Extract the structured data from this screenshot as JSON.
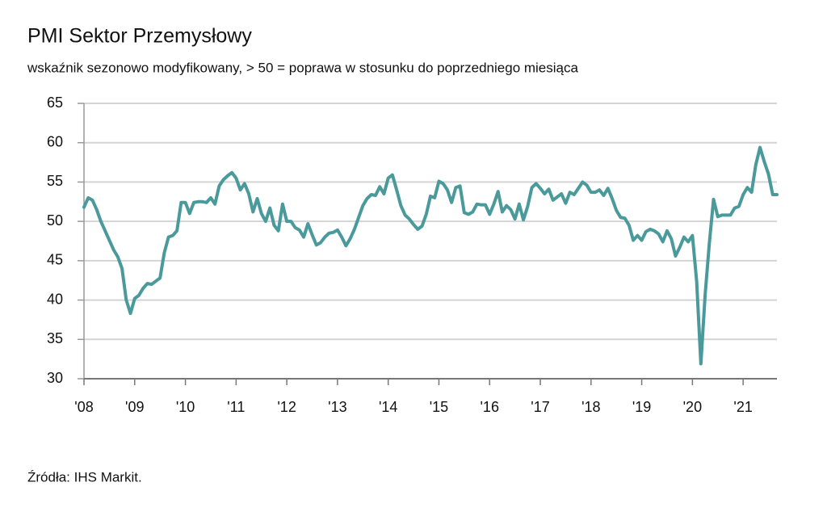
{
  "chart_data": {
    "type": "line",
    "title": "PMI Sektor Przemysłowy",
    "subtitle": "wskaźnik sezonowo modyfikowany, > 50 = poprawa w stosunku do poprzedniego miesiąca",
    "source": "Źródła: IHS Markit.",
    "categories": [
      "'08",
      null,
      null,
      null,
      null,
      null,
      null,
      null,
      null,
      null,
      null,
      null,
      "'09",
      null,
      null,
      null,
      null,
      null,
      null,
      null,
      null,
      null,
      null,
      null,
      "'10",
      null,
      null,
      null,
      null,
      null,
      null,
      null,
      null,
      null,
      null,
      null,
      "'11",
      null,
      null,
      null,
      null,
      null,
      null,
      null,
      null,
      null,
      null,
      null,
      "'12",
      null,
      null,
      null,
      null,
      null,
      null,
      null,
      null,
      null,
      null,
      null,
      "'13",
      null,
      null,
      null,
      null,
      null,
      null,
      null,
      null,
      null,
      null,
      null,
      "'14",
      null,
      null,
      null,
      null,
      null,
      null,
      null,
      null,
      null,
      null,
      null,
      "'15",
      null,
      null,
      null,
      null,
      null,
      null,
      null,
      null,
      null,
      null,
      null,
      "'16",
      null,
      null,
      null,
      null,
      null,
      null,
      null,
      null,
      null,
      null,
      null,
      "'17",
      null,
      null,
      null,
      null,
      null,
      null,
      null,
      null,
      null,
      null,
      null,
      "'18",
      null,
      null,
      null,
      null,
      null,
      null,
      null,
      null,
      null,
      null,
      null,
      "'19",
      null,
      null,
      null,
      null,
      null,
      null,
      null,
      null,
      null,
      null,
      null,
      "'20",
      null,
      null,
      null,
      null,
      null,
      null,
      null,
      null,
      null,
      null,
      null,
      "'21",
      null,
      null,
      null,
      null,
      null,
      null,
      null,
      null
    ],
    "values": [
      51.8,
      53.0,
      52.7,
      51.5,
      50.0,
      48.8,
      47.6,
      46.4,
      45.5,
      44.0,
      40.0,
      38.3,
      40.2,
      40.6,
      41.5,
      42.1,
      42.0,
      42.4,
      42.8,
      46.0,
      48.0,
      48.2,
      48.8,
      52.4,
      52.4,
      51.0,
      52.4,
      52.5,
      52.5,
      52.4,
      53.0,
      52.2,
      54.5,
      55.3,
      55.8,
      56.2,
      55.5,
      54.0,
      54.8,
      53.5,
      51.2,
      52.9,
      51.0,
      50.0,
      51.7,
      49.5,
      48.8,
      52.2,
      50.0,
      50.0,
      49.2,
      48.9,
      48.0,
      49.7,
      48.3,
      47.0,
      47.3,
      48.0,
      48.5,
      48.6,
      48.9,
      48.0,
      46.9,
      47.8,
      49.0,
      50.5,
      52.0,
      52.9,
      53.4,
      53.3,
      54.4,
      53.5,
      55.5,
      55.9,
      54.0,
      52.0,
      50.8,
      50.3,
      49.6,
      49.0,
      49.4,
      50.9,
      53.2,
      53.0,
      55.1,
      54.8,
      54.0,
      52.4,
      54.3,
      54.5,
      51.1,
      50.9,
      51.2,
      52.2,
      52.1,
      52.1,
      50.9,
      52.2,
      53.8,
      51.2,
      52.0,
      51.5,
      50.3,
      52.2,
      50.2,
      51.9,
      54.3,
      54.8,
      54.2,
      53.5,
      54.1,
      52.7,
      53.1,
      53.5,
      52.3,
      53.7,
      53.4,
      54.2,
      55.0,
      54.6,
      53.7,
      53.7,
      54.0,
      53.3,
      54.2,
      52.9,
      51.4,
      50.5,
      50.4,
      49.5,
      47.6,
      48.2,
      47.6,
      48.7,
      49.0,
      48.8,
      48.4,
      47.4,
      48.8,
      47.8,
      45.6,
      46.7,
      48.0,
      47.4,
      48.2,
      42.4,
      31.9,
      40.6,
      47.2,
      52.8,
      50.6,
      50.8,
      50.8,
      50.8,
      51.7,
      51.9,
      53.4,
      54.3,
      53.7,
      57.2,
      59.4,
      57.6,
      56.0,
      53.4,
      53.4
    ],
    "color": "#4a9a9c",
    "ylim": [
      30,
      65
    ],
    "yticks": [
      30,
      35,
      40,
      45,
      50,
      55,
      60,
      65
    ],
    "grid": true
  }
}
